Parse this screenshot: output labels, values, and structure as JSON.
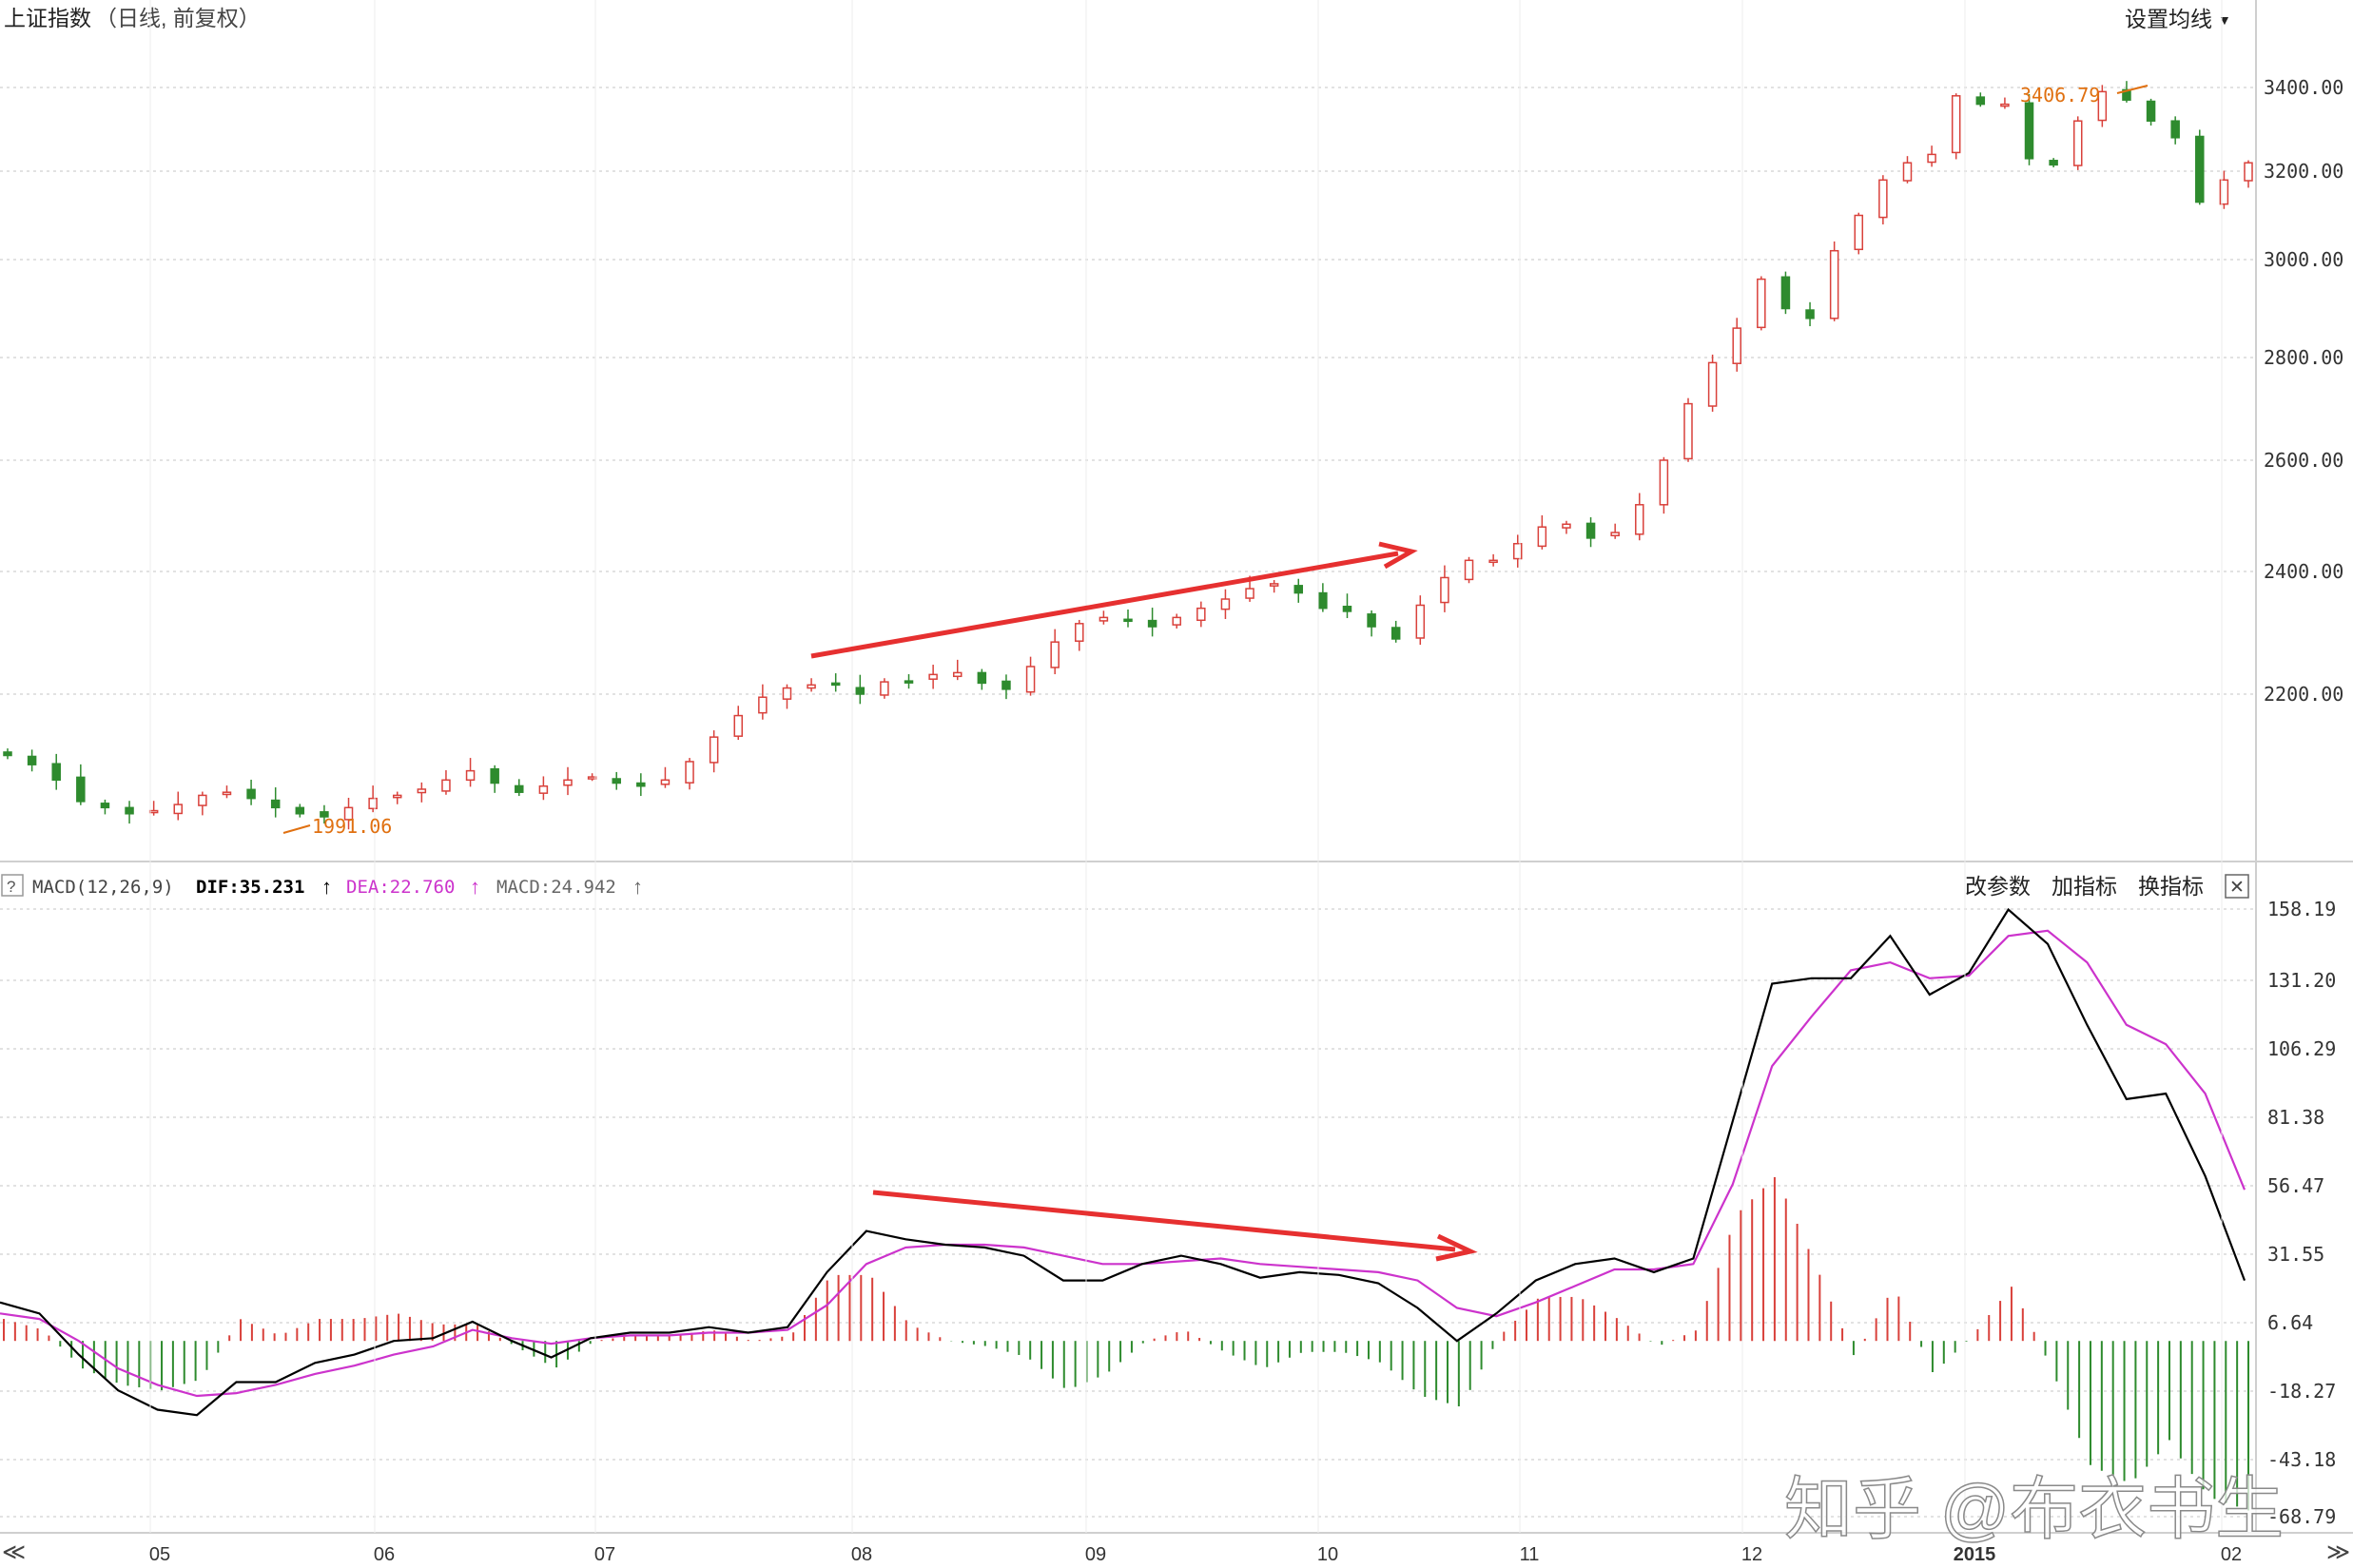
{
  "header": {
    "title": "上证指数",
    "subtitle": "（日线, 前复权）",
    "ma_settings": "设置均线",
    "ma_settings_arrow": "▼"
  },
  "macd_header": {
    "help": "?",
    "name": "MACD(12,26,9)",
    "dif": "DIF:35.231",
    "dea": "DEA:22.760",
    "macd": "MACD:24.942",
    "arrow": "↑",
    "change_params": "改参数",
    "add_indicator": "加指标",
    "switch_indicator": "换指标",
    "close": "✕"
  },
  "scroll_left": "≪",
  "scroll_right": "≫",
  "watermark": "知乎 @布衣书生",
  "colors": {
    "up": "#d9413b",
    "down": "#2e8b2e",
    "dif": "#000000",
    "dea": "#cc33cc",
    "annotation": "#e63030",
    "label": "#e07010",
    "grid": "#d8d8d8"
  },
  "chart_data": [
    {
      "type": "candlestick",
      "title": "上证指数",
      "price_ticks": [
        3400,
        3200,
        3000,
        2800,
        2600,
        2400,
        2200
      ],
      "price_tick_labels": [
        "3400.00",
        "3200.00",
        "3000.00",
        "2800.00",
        "2600.00",
        "2400.00",
        "2200.00"
      ],
      "x_labels": [
        "05",
        "06",
        "07",
        "08",
        "09",
        "10",
        "11",
        "12",
        "2015",
        "02"
      ],
      "low_label": "1991.06",
      "high_label": "3406.79",
      "approx_closes": [
        2100,
        2085,
        2060,
        2025,
        2015,
        2005,
        2010,
        2020,
        2035,
        2040,
        2030,
        2015,
        2005,
        2000,
        2015,
        2030,
        2035,
        2045,
        2060,
        2075,
        2055,
        2040,
        2050,
        2060,
        2065,
        2055,
        2050,
        2060,
        2090,
        2130,
        2165,
        2195,
        2210,
        2215,
        2215,
        2200,
        2220,
        2220,
        2232,
        2235,
        2218,
        2208,
        2245,
        2285,
        2315,
        2325,
        2320,
        2310,
        2325,
        2340,
        2355,
        2372,
        2380,
        2365,
        2340,
        2335,
        2310,
        2290,
        2345,
        2390,
        2420,
        2420,
        2450,
        2480,
        2485,
        2460,
        2470,
        2520,
        2600,
        2710,
        2790,
        2860,
        2960,
        2900,
        2880,
        3020,
        3100,
        3180,
        3220,
        3240,
        3380,
        3360,
        3360,
        3230,
        3215,
        3320,
        3390,
        3370,
        3320,
        3280,
        3130,
        3180,
        3220
      ],
      "macd": {
        "indicator": "MACD(12,26,9)",
        "tick_labels": [
          "158.19",
          "131.20",
          "106.29",
          "81.38",
          "56.47",
          "31.55",
          "6.64",
          "-18.27",
          "-43.18",
          "-68.79"
        ],
        "approx_dif": [
          14,
          10,
          -5,
          -18,
          -25,
          -27,
          -15,
          -15,
          -8,
          -5,
          0,
          1,
          7,
          0,
          -6,
          1,
          3,
          3,
          5,
          3,
          5,
          25,
          40,
          37,
          35,
          34,
          31,
          22,
          22,
          28,
          31,
          28,
          23,
          25,
          24,
          21,
          12,
          0,
          10,
          22,
          28,
          30,
          25,
          30,
          80,
          130,
          132,
          132,
          148,
          126,
          134,
          158,
          145,
          115,
          88,
          90,
          60,
          22
        ],
        "approx_dea": [
          10,
          8,
          0,
          -10,
          -16,
          -20,
          -19,
          -16,
          -12,
          -9,
          -5,
          -2,
          4,
          1,
          -1,
          1,
          2,
          2,
          3,
          3,
          4,
          13,
          28,
          34,
          35,
          35,
          34,
          31,
          28,
          28,
          29,
          30,
          28,
          27,
          26,
          25,
          22,
          12,
          9,
          14,
          20,
          26,
          26,
          28,
          57,
          100,
          118,
          135,
          138,
          132,
          133,
          148,
          150,
          138,
          115,
          108,
          90,
          55
        ],
        "approx_hist_peak": 85,
        "approx_hist_trough": -68
      },
      "annotations": [
        "price rises while MACD falls (top divergence)"
      ]
    }
  ]
}
